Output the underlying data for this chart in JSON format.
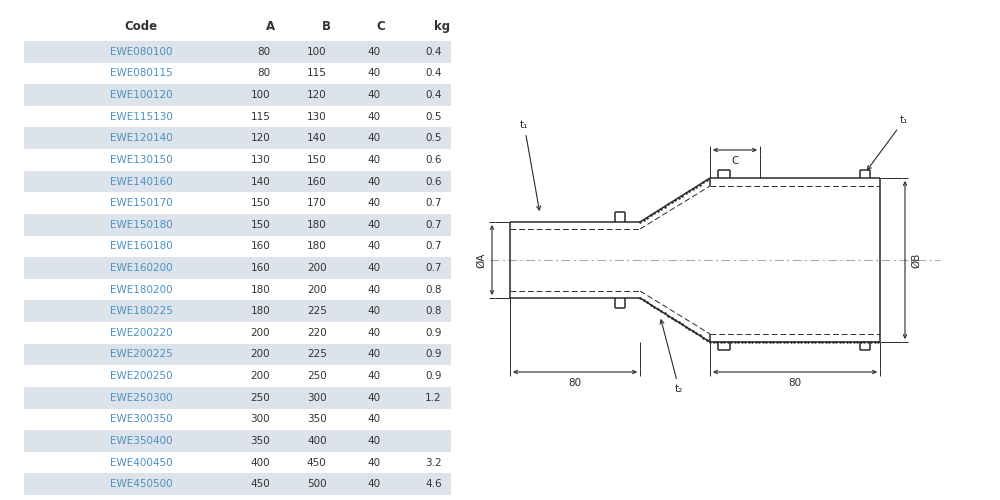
{
  "table": {
    "headers": [
      "Code",
      "A",
      "B",
      "C",
      "kg"
    ],
    "rows": [
      [
        "EWE080100",
        "80",
        "100",
        "40",
        "0.4"
      ],
      [
        "EWE080115",
        "80",
        "115",
        "40",
        "0.4"
      ],
      [
        "EWE100120",
        "100",
        "120",
        "40",
        "0.4"
      ],
      [
        "EWE115130",
        "115",
        "130",
        "40",
        "0.5"
      ],
      [
        "EWE120140",
        "120",
        "140",
        "40",
        "0.5"
      ],
      [
        "EWE130150",
        "130",
        "150",
        "40",
        "0.6"
      ],
      [
        "EWE140160",
        "140",
        "160",
        "40",
        "0.6"
      ],
      [
        "EWE150170",
        "150",
        "170",
        "40",
        "0.7"
      ],
      [
        "EWE150180",
        "150",
        "180",
        "40",
        "0.7"
      ],
      [
        "EWE160180",
        "160",
        "180",
        "40",
        "0.7"
      ],
      [
        "EWE160200",
        "160",
        "200",
        "40",
        "0.7"
      ],
      [
        "EWE180200",
        "180",
        "200",
        "40",
        "0.8"
      ],
      [
        "EWE180225",
        "180",
        "225",
        "40",
        "0.8"
      ],
      [
        "EWE200220",
        "200",
        "220",
        "40",
        "0.9"
      ],
      [
        "EWE200225",
        "200",
        "225",
        "40",
        "0.9"
      ],
      [
        "EWE200250",
        "200",
        "250",
        "40",
        "0.9"
      ],
      [
        "EWE250300",
        "250",
        "300",
        "40",
        "1.2"
      ],
      [
        "EWE300350",
        "300",
        "350",
        "40",
        ""
      ],
      [
        "EWE350400",
        "350",
        "400",
        "40",
        ""
      ],
      [
        "EWE400450",
        "400",
        "450",
        "40",
        "3.2"
      ],
      [
        "EWE450500",
        "450",
        "500",
        "40",
        "4.6"
      ]
    ],
    "shaded_rows": [
      0,
      2,
      4,
      6,
      8,
      10,
      12,
      14,
      16,
      18,
      20
    ],
    "shade_color": "#dde3ea",
    "code_color": "#4a90c4",
    "header_color": "#333333",
    "data_color": "#333333",
    "bg_color": "#ffffff"
  },
  "drawing": {
    "bg_color": "#ffffff",
    "line_color": "#2a2a2a",
    "dim_color": "#2a2a2a",
    "dash_color": "#aaaaaa"
  }
}
